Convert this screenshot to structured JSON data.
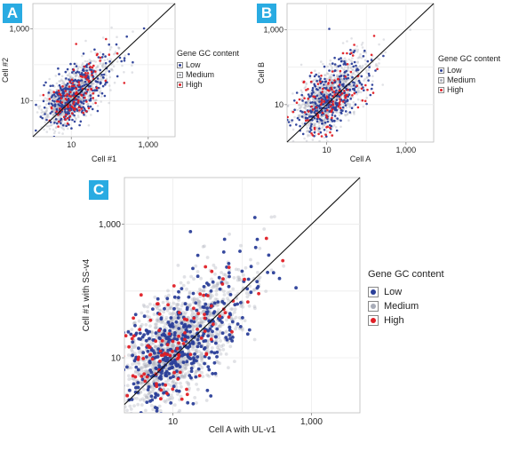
{
  "colors": {
    "low": "#2b3f99",
    "medium": "#a8acb8",
    "high": "#e01f26",
    "badge": "#29abe2"
  },
  "chart_data": [
    {
      "panel": "A",
      "type": "scatter",
      "log_scale": true,
      "xlabel": "Cell #1",
      "ylabel": "Cell #2",
      "xticks": [
        {
          "v": 10,
          "label": "10"
        },
        {
          "v": 1000,
          "label": "1,000"
        }
      ],
      "yticks": [
        {
          "v": 10,
          "label": "10"
        },
        {
          "v": 1000,
          "label": "1,000"
        }
      ],
      "xlim": [
        1,
        5000
      ],
      "ylim": [
        1,
        5000
      ],
      "grid": true,
      "identity_line": true,
      "legend": {
        "title": "Gene GC content",
        "placement": "right",
        "entries": [
          "Low",
          "Medium",
          "High"
        ]
      },
      "series": [
        {
          "name": "Low",
          "color_key": "low",
          "count": 340,
          "spread": 0.35
        },
        {
          "name": "Medium",
          "color_key": "medium",
          "count": 1100,
          "spread": 0.3
        },
        {
          "name": "High",
          "color_key": "high",
          "count": 120,
          "spread": 0.35
        }
      ]
    },
    {
      "panel": "B",
      "type": "scatter",
      "log_scale": true,
      "xlabel": "Cell A",
      "ylabel": "Cell B",
      "xticks": [
        {
          "v": 10,
          "label": "10"
        },
        {
          "v": 1000,
          "label": "1,000"
        }
      ],
      "yticks": [
        {
          "v": 10,
          "label": "10"
        },
        {
          "v": 1000,
          "label": "1,000"
        }
      ],
      "xlim": [
        1,
        5000
      ],
      "ylim": [
        1,
        5000
      ],
      "grid": true,
      "identity_line": true,
      "legend": {
        "title": "Gene GC content",
        "placement": "right",
        "entries": [
          "Low",
          "Medium",
          "High"
        ]
      },
      "series": [
        {
          "name": "Low",
          "color_key": "low",
          "count": 340,
          "spread": 0.4
        },
        {
          "name": "Medium",
          "color_key": "medium",
          "count": 1100,
          "spread": 0.35
        },
        {
          "name": "High",
          "color_key": "high",
          "count": 120,
          "spread": 0.4
        }
      ]
    },
    {
      "panel": "C",
      "type": "scatter",
      "log_scale": true,
      "xlabel": "Cell A with UL-v1",
      "ylabel": "Cell #1 with SS-v4",
      "xticks": [
        {
          "v": 10,
          "label": "10"
        },
        {
          "v": 1000,
          "label": "1,000"
        }
      ],
      "yticks": [
        {
          "v": 10,
          "label": "10"
        },
        {
          "v": 1000,
          "label": "1,000"
        }
      ],
      "xlim": [
        2,
        5000
      ],
      "ylim": [
        1.5,
        5000
      ],
      "grid": true,
      "identity_line": true,
      "legend": {
        "title": "Gene GC content",
        "placement": "right",
        "entries": [
          "Low",
          "Medium",
          "High"
        ]
      },
      "series": [
        {
          "name": "Low",
          "color_key": "low",
          "count": 420,
          "spread": 0.38
        },
        {
          "name": "Medium",
          "color_key": "medium",
          "count": 1400,
          "spread": 0.33
        },
        {
          "name": "High",
          "color_key": "high",
          "count": 110,
          "spread": 0.38
        }
      ]
    }
  ]
}
